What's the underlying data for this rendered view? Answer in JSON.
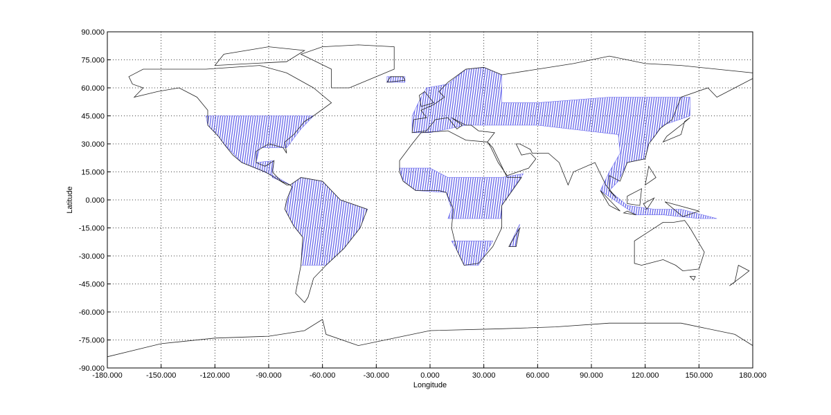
{
  "chart_data": {
    "type": "map",
    "x_label": "Longitude",
    "y_label": "Latitude",
    "xlim": [
      -180,
      180
    ],
    "ylim": [
      -90,
      90
    ],
    "xticks": [
      {
        "value": -180,
        "label": "-180.000"
      },
      {
        "value": -150,
        "label": "-150.000"
      },
      {
        "value": -120,
        "label": "-120.000"
      },
      {
        "value": -90,
        "label": "-90.000"
      },
      {
        "value": -60,
        "label": "-60.000"
      },
      {
        "value": -30,
        "label": "-30.000"
      },
      {
        "value": 0,
        "label": "0.000"
      },
      {
        "value": 30,
        "label": "30.000"
      },
      {
        "value": 60,
        "label": "60.000"
      },
      {
        "value": 90,
        "label": "90.000"
      },
      {
        "value": 120,
        "label": "120.000"
      },
      {
        "value": 150,
        "label": "150.000"
      },
      {
        "value": 180,
        "label": "180.000"
      }
    ],
    "yticks": [
      {
        "value": -90,
        "label": "-90.000"
      },
      {
        "value": -75,
        "label": "-75.000"
      },
      {
        "value": -60,
        "label": "-60.000"
      },
      {
        "value": -45,
        "label": "-45.000"
      },
      {
        "value": -30,
        "label": "-30.000"
      },
      {
        "value": -15,
        "label": "-15.000"
      },
      {
        "value": 0,
        "label": "0.000"
      },
      {
        "value": 15,
        "label": "15.000"
      },
      {
        "value": 30,
        "label": "30.000"
      },
      {
        "value": 45,
        "label": "45.000"
      },
      {
        "value": 60,
        "label": "60.000"
      },
      {
        "value": 75,
        "label": "75.000"
      },
      {
        "value": 90,
        "label": "90.000"
      }
    ],
    "grid": true
  }
}
